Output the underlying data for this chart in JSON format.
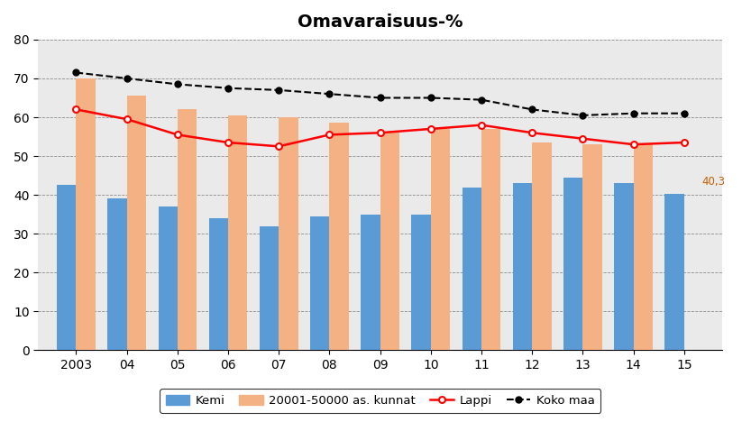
{
  "title": "Omavaraisuus-%",
  "years": [
    "2003",
    "04",
    "05",
    "06",
    "07",
    "08",
    "09",
    "10",
    "11",
    "12",
    "13",
    "14",
    "15"
  ],
  "kemi": [
    42.5,
    39.0,
    37.0,
    34.0,
    32.0,
    34.5,
    35.0,
    35.0,
    42.0,
    43.0,
    44.5,
    43.0,
    40.3
  ],
  "kunnat": [
    70.0,
    65.5,
    62.0,
    60.5,
    60.0,
    58.5,
    56.0,
    57.0,
    57.0,
    53.5,
    53.0,
    53.0,
    null
  ],
  "lappi": [
    62.0,
    59.5,
    55.5,
    53.5,
    52.5,
    55.5,
    56.0,
    57.0,
    58.0,
    56.0,
    54.5,
    53.0,
    53.5
  ],
  "koko_maa": [
    71.5,
    70.0,
    68.5,
    67.5,
    67.0,
    66.0,
    65.0,
    65.0,
    64.5,
    62.0,
    60.5,
    61.0,
    61.0
  ],
  "kemi_color": "#5B9BD5",
  "kunnat_color": "#F4B183",
  "lappi_color": "#FF0000",
  "koko_maa_color": "#000000",
  "bg_color": "#EAEAEA",
  "ylim": [
    0,
    80
  ],
  "yticks": [
    0,
    10,
    20,
    30,
    40,
    50,
    60,
    70,
    80
  ],
  "annotation": "40,3",
  "legend_labels": [
    "Kemi",
    "20001-50000 as. kunnat",
    "Lappi",
    "Koko maa"
  ]
}
